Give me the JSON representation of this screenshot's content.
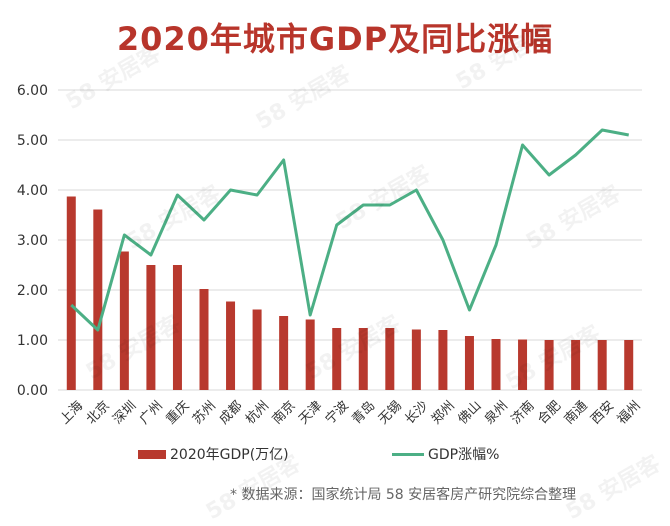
{
  "title": "2020年城市GDP及同比涨幅",
  "watermark": "58 安居客",
  "source": "* 数据来源：国家统计局 58 安居客房产研究院综合整理",
  "colors": {
    "bar": "#b8392e",
    "line": "#4caf85",
    "title": "#b8352b",
    "grid": "#d9d9d9"
  },
  "chart_data": {
    "type": "bar+line",
    "title": "2020年城市GDP及同比涨幅",
    "categories": [
      "上海",
      "北京",
      "深圳",
      "广州",
      "重庆",
      "苏州",
      "成都",
      "杭州",
      "南京",
      "天津",
      "宁波",
      "青岛",
      "无锡",
      "长沙",
      "郑州",
      "佛山",
      "泉州",
      "济南",
      "合肥",
      "南通",
      "西安",
      "福州"
    ],
    "series": [
      {
        "name": "2020年GDP(万亿)",
        "type": "bar",
        "values": [
          3.87,
          3.61,
          2.77,
          2.5,
          2.5,
          2.02,
          1.77,
          1.61,
          1.48,
          1.41,
          1.24,
          1.24,
          1.24,
          1.21,
          1.2,
          1.08,
          1.02,
          1.01,
          1.0,
          1.0,
          1.0,
          1.0
        ]
      },
      {
        "name": "GDP涨幅%",
        "type": "line",
        "values": [
          1.7,
          1.2,
          3.1,
          2.7,
          3.9,
          3.4,
          4.0,
          3.9,
          4.6,
          1.5,
          3.3,
          3.7,
          3.7,
          4.0,
          3.0,
          1.6,
          2.9,
          4.9,
          4.3,
          4.7,
          5.2,
          5.1
        ]
      }
    ],
    "ylim": [
      0,
      6
    ],
    "yticks": [
      "0.00",
      "1.00",
      "2.00",
      "3.00",
      "4.00",
      "5.00",
      "6.00"
    ],
    "grid": true,
    "legend": "bottom"
  }
}
